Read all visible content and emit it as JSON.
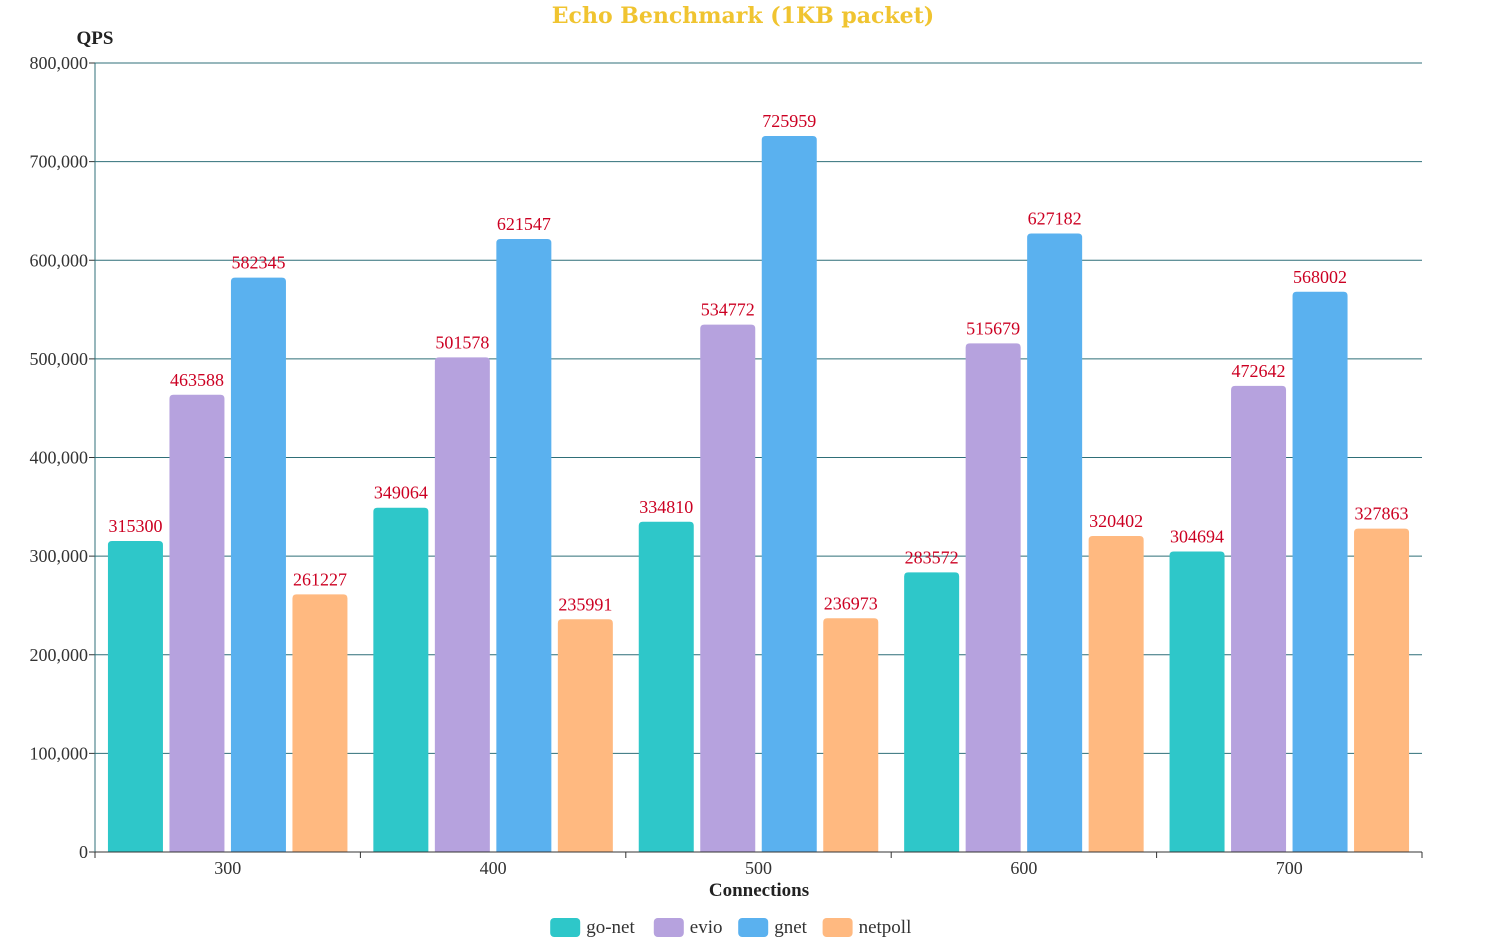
{
  "chart_data": {
    "type": "bar",
    "title": "Echo Benchmark (1KB packet)",
    "xlabel": "Connections",
    "ylabel": "QPS",
    "categories": [
      "300",
      "400",
      "500",
      "600",
      "700"
    ],
    "ylim": [
      0,
      800000
    ],
    "yticks": [
      0,
      100000,
      200000,
      300000,
      400000,
      500000,
      600000,
      700000,
      800000
    ],
    "ytick_labels": [
      "0",
      "100,000",
      "200,000",
      "300,000",
      "400,000",
      "500,000",
      "600,000",
      "700,000",
      "800,000"
    ],
    "grid": true,
    "legend_position": "bottom",
    "series": [
      {
        "name": "go-net",
        "color": "#2ec7c9",
        "values": [
          315300,
          349064,
          334810,
          283572,
          304694
        ]
      },
      {
        "name": "evio",
        "color": "#b6a2de",
        "values": [
          463588,
          501578,
          534772,
          515679,
          472642
        ]
      },
      {
        "name": "gnet",
        "color": "#5ab1ef",
        "values": [
          582345,
          621547,
          725959,
          627182,
          568002
        ]
      },
      {
        "name": "netpoll",
        "color": "#ffb980",
        "values": [
          261227,
          235991,
          236973,
          320402,
          327863
        ]
      }
    ],
    "label_color": "#cc0022",
    "title_color": "#f0c430",
    "grid_color": "#2f6f78"
  }
}
